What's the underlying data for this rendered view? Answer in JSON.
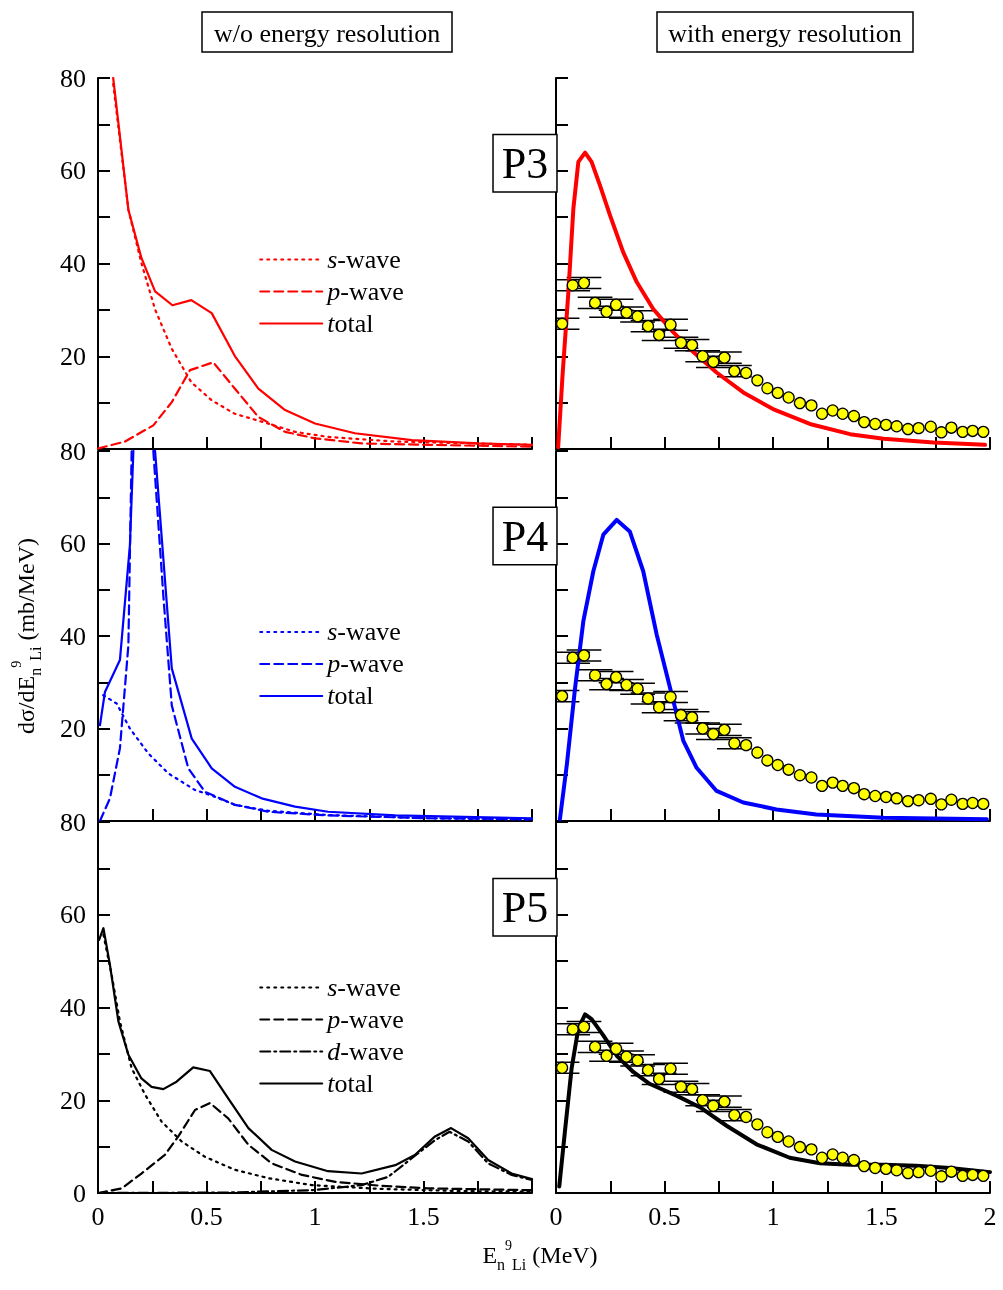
{
  "chart_data": [
    {
      "type": "line",
      "title": "w/o energy resolution",
      "xlim": [
        0,
        2
      ],
      "xticks": [
        0,
        {
          "value": 0.25,
          "label": null
        },
        0.5,
        {
          "value": 0.75,
          "label": null
        },
        1,
        {
          "value": 1.25,
          "label": null
        },
        1.5,
        {
          "value": 1.75,
          "label": null
        },
        2
      ],
      "ylim": [
        0,
        80
      ],
      "yticks": [
        {
          "value": 0,
          "label": null
        },
        {
          "value": 10,
          "label": null
        },
        20,
        {
          "value": 30,
          "label": null
        },
        40,
        {
          "value": 50,
          "label": null
        },
        60,
        {
          "value": 70,
          "label": null
        },
        80
      ],
      "tick_labels": "y",
      "legend": "right",
      "grid": false,
      "series": [
        {
          "name": "s-wave",
          "color": "#ff0000",
          "line_style": "dotted",
          "x": [
            0.07,
            0.14,
            0.2,
            0.263,
            0.34,
            0.43,
            0.524,
            0.63,
            0.754,
            0.908,
            1.06,
            1.37,
            2.0
          ],
          "values": [
            78.7,
            51.6,
            40.1,
            30.1,
            21.6,
            14.4,
            10.5,
            7.6,
            5.9,
            3.7,
            2.6,
            1.6,
            0.9
          ]
        },
        {
          "name": "p-wave",
          "color": "#ff0000",
          "line_style": "dashed",
          "x": [
            0,
            0.124,
            0.255,
            0.34,
            0.424,
            0.531,
            0.631,
            0.739,
            0.862,
            1.0,
            1.215,
            1.52,
            2.0
          ],
          "values": [
            0.1,
            1.6,
            5.1,
            10.1,
            17,
            18.7,
            13,
            6.9,
            3.7,
            2.3,
            1.2,
            0.9,
            0.5
          ]
        },
        {
          "name": "total",
          "color": "#ff0000",
          "line_style": "solid",
          "x": [
            0.07,
            0.14,
            0.2,
            0.263,
            0.343,
            0.43,
            0.524,
            0.63,
            0.739,
            0.862,
            1.0,
            1.184,
            1.446,
            1.753,
            2.0
          ],
          "values": [
            80,
            51.6,
            41.2,
            34,
            31,
            32.1,
            29.3,
            20.1,
            13,
            8.4,
            5.5,
            3.4,
            1.9,
            1.2,
            0.9
          ]
        }
      ]
    },
    {
      "type": "line",
      "title": "with energy resolution",
      "annotations": [
        "P3"
      ],
      "xlim": [
        0,
        2
      ],
      "xticks": [
        0,
        {
          "value": 0.25,
          "label": null
        },
        0.5,
        {
          "value": 0.75,
          "label": null
        },
        1,
        {
          "value": 1.25,
          "label": null
        },
        1.5,
        {
          "value": 1.75,
          "label": null
        },
        2
      ],
      "ylim": [
        0,
        80
      ],
      "yticks": [
        {
          "value": 0,
          "label": null
        },
        {
          "value": 10,
          "label": null
        },
        {
          "value": 20,
          "label": null
        },
        {
          "value": 30,
          "label": null
        },
        {
          "value": 40,
          "label": null
        },
        {
          "value": 50,
          "label": null
        },
        {
          "value": 60,
          "label": null
        },
        {
          "value": 70,
          "label": null
        },
        {
          "value": 80,
          "label": null
        }
      ],
      "tick_labels": false,
      "grid": false,
      "series": [
        {
          "type": "scatter",
          "color": "#ffff00",
          "marker": "circle",
          "x": [
            0.028,
            0.077,
            0.129,
            0.18,
            0.233,
            0.277,
            0.325,
            0.376,
            0.424,
            0.475,
            0.528,
            0.576,
            0.627,
            0.676,
            0.725,
            0.776,
            0.822,
            0.876,
            0.928,
            0.974,
            1.022,
            1.072,
            1.124,
            1.177,
            1.226,
            1.275,
            1.321,
            1.373,
            1.42,
            1.471,
            1.521,
            1.57,
            1.622,
            1.671,
            1.727,
            1.776,
            1.822,
            1.874,
            1.92,
            1.969
          ],
          "values": [
            27.0,
            35.3,
            35.8,
            31.5,
            29.6,
            31.1,
            29.4,
            28.6,
            26.5,
            24.6,
            26.8,
            22.9,
            22.4,
            20.0,
            18.8,
            19.7,
            16.8,
            16.4,
            14.8,
            13.1,
            12.1,
            11.1,
            9.9,
            9.4,
            7.6,
            8.3,
            7.6,
            7.1,
            5.8,
            5.4,
            5.2,
            4.9,
            4.3,
            4.5,
            4.8,
            3.6,
            4.6,
            3.7,
            3.9,
            3.7
          ],
          "errors": [
            1.2,
            1.2,
            1.2,
            1.2,
            1.2,
            1.2,
            1.2,
            1.2,
            1.2,
            1.2,
            1.2,
            1.2,
            1.2,
            1.2,
            1.2,
            1.2,
            1.2,
            null,
            null,
            null,
            null,
            null,
            null,
            null,
            null,
            null,
            null,
            null,
            null,
            null,
            null,
            null,
            null,
            null,
            null,
            null,
            null,
            null,
            null,
            null
          ]
        },
        {
          "type": "line",
          "color": "#ff0000",
          "line_style": "solid",
          "marker": "none",
          "x": [
            0.01,
            0.03,
            0.057,
            0.08,
            0.103,
            0.134,
            0.164,
            0.203,
            0.249,
            0.31,
            0.372,
            0.448,
            0.54,
            0.633,
            0.74,
            0.863,
            1.0,
            1.17,
            1.355,
            1.51,
            1.74,
            1.977
          ],
          "values": [
            0.4,
            15.8,
            33.8,
            51.8,
            61.9,
            63.9,
            61.9,
            56.8,
            50.4,
            42.4,
            36,
            30.2,
            25.2,
            20.9,
            16.5,
            12.2,
            8.6,
            5.4,
            3.2,
            2.2,
            1.4,
            0.9
          ]
        }
      ]
    },
    {
      "type": "line",
      "ylabel": "dσ/dE$_{n}$$^{9}$$_{Li}$ (mb/MeV)",
      "xlim": [
        0,
        2
      ],
      "xticks": [
        0,
        {
          "value": 0.25,
          "label": null
        },
        0.5,
        {
          "value": 0.75,
          "label": null
        },
        1,
        {
          "value": 1.25,
          "label": null
        },
        1.5,
        {
          "value": 1.75,
          "label": null
        },
        2
      ],
      "ylim": [
        0,
        80
      ],
      "yticks": [
        {
          "value": 0,
          "label": null
        },
        {
          "value": 10,
          "label": null
        },
        20,
        {
          "value": 30,
          "label": null
        },
        40,
        {
          "value": 50,
          "label": null
        },
        60,
        {
          "value": 70,
          "label": null
        },
        80
      ],
      "tick_labels": "y",
      "legend": "right",
      "grid": false,
      "series": [
        {
          "name": "s-wave",
          "color": "#0000ff",
          "line_style": "dotted",
          "x": [
            0.024,
            0.086,
            0.147,
            0.232,
            0.324,
            0.447,
            0.524,
            0.631,
            0.785,
            1.06,
            1.52,
            2.0
          ],
          "values": [
            27.2,
            25.4,
            20,
            14.6,
            10.3,
            6.7,
            5.5,
            3.5,
            2.2,
            1.3,
            0.6,
            0.3
          ]
        },
        {
          "name": "p-wave",
          "color": "#0000ff",
          "line_style": "dashed",
          "x": [
            0.009,
            0.055,
            0.101,
            0.14,
            0.155,
            0.205,
            0.255,
            0.301,
            0.34,
            0.416,
            0.493,
            0.631,
            0.785,
            1.06,
            1.52,
            2.0
          ],
          "values": [
            0,
            4.9,
            15.7,
            38,
            80,
            null,
            80,
            48.8,
            25,
            11.4,
            6.3,
            3.5,
            2.0,
            1.2,
            0.6,
            0.4
          ]
        },
        {
          "name": "total",
          "color": "#0000ff",
          "line_style": "solid",
          "x": [
            0.009,
            0.032,
            0.101,
            0.147,
            0.163,
            0.213,
            0.263,
            0.34,
            0.432,
            0.524,
            0.631,
            0.754,
            0.908,
            1.06,
            1.37,
            2.0
          ],
          "values": [
            20.7,
            27.9,
            34.8,
            59.6,
            80,
            null,
            80,
            33,
            17.8,
            11.4,
            7.4,
            4.9,
            3.1,
            2,
            1.2,
            0.6
          ]
        }
      ]
    },
    {
      "type": "line",
      "annotations": [
        "P4"
      ],
      "xlim": [
        0,
        2
      ],
      "xticks": [
        0,
        {
          "value": 0.25,
          "label": null
        },
        0.5,
        {
          "value": 0.75,
          "label": null
        },
        1,
        {
          "value": 1.25,
          "label": null
        },
        1.5,
        {
          "value": 1.75,
          "label": null
        },
        2
      ],
      "ylim": [
        0,
        80
      ],
      "yticks": [
        {
          "value": 0,
          "label": null
        },
        {
          "value": 10,
          "label": null
        },
        {
          "value": 20,
          "label": null
        },
        {
          "value": 30,
          "label": null
        },
        {
          "value": 40,
          "label": null
        },
        {
          "value": 50,
          "label": null
        },
        {
          "value": 60,
          "label": null
        },
        {
          "value": 70,
          "label": null
        },
        {
          "value": 80,
          "label": null
        }
      ],
      "tick_labels": false,
      "grid": false,
      "series": [
        {
          "type": "scatter",
          "color": "#ffff00",
          "marker": "circle",
          "x": [
            0.028,
            0.077,
            0.129,
            0.18,
            0.233,
            0.277,
            0.325,
            0.376,
            0.424,
            0.475,
            0.528,
            0.576,
            0.627,
            0.676,
            0.725,
            0.776,
            0.822,
            0.876,
            0.928,
            0.974,
            1.022,
            1.072,
            1.124,
            1.177,
            1.226,
            1.275,
            1.321,
            1.373,
            1.42,
            1.471,
            1.521,
            1.57,
            1.622,
            1.671,
            1.727,
            1.776,
            1.822,
            1.874,
            1.92,
            1.969
          ],
          "values": [
            27.0,
            35.3,
            35.8,
            31.5,
            29.6,
            31.1,
            29.4,
            28.6,
            26.5,
            24.6,
            26.8,
            22.9,
            22.4,
            20.0,
            18.8,
            19.7,
            16.8,
            16.4,
            14.8,
            13.1,
            12.1,
            11.1,
            9.9,
            9.4,
            7.6,
            8.3,
            7.6,
            7.1,
            5.8,
            5.4,
            5.2,
            4.9,
            4.3,
            4.5,
            4.8,
            3.6,
            4.6,
            3.7,
            3.9,
            3.7
          ],
          "errors": [
            1.2,
            1.2,
            1.2,
            1.2,
            1.2,
            1.2,
            1.2,
            1.2,
            1.2,
            1.2,
            1.2,
            1.2,
            1.2,
            1.2,
            1.2,
            1.2,
            1.2,
            null,
            null,
            null,
            null,
            null,
            null,
            null,
            null,
            null,
            null,
            null,
            null,
            null,
            null,
            null,
            null,
            null,
            null,
            null,
            null,
            null,
            null,
            null
          ]
        },
        {
          "type": "line",
          "color": "#0000ff",
          "line_style": "solid",
          "marker": "none",
          "x": [
            0.018,
            0.05,
            0.088,
            0.126,
            0.172,
            0.218,
            0.28,
            0.34,
            0.402,
            0.464,
            0.587,
            0.648,
            0.74,
            0.863,
            1.016,
            1.2,
            1.51,
            1.985
          ],
          "values": [
            0.4,
            12.2,
            28.8,
            43.2,
            54,
            61.9,
            65.1,
            62.6,
            54,
            40.3,
            17.3,
            11.5,
            6.5,
            4.0,
            2.5,
            1.4,
            0.7,
            0.4
          ]
        }
      ]
    },
    {
      "type": "line",
      "xlim": [
        0,
        2
      ],
      "xticks": [
        0,
        {
          "value": 0.25,
          "label": null
        },
        0.5,
        {
          "value": 0.75,
          "label": null
        },
        1,
        {
          "value": 1.25,
          "label": null
        },
        1.5,
        {
          "value": 1.75,
          "label": null
        },
        {
          "value": 2,
          "label": null
        }
      ],
      "ylim": [
        0,
        80
      ],
      "yticks": [
        0,
        {
          "value": 10,
          "label": null
        },
        20,
        {
          "value": 30,
          "label": null
        },
        40,
        {
          "value": 50,
          "label": null
        },
        60,
        {
          "value": 70,
          "label": null
        },
        80
      ],
      "legend": "right",
      "grid": false,
      "series": [
        {
          "name": "s-wave",
          "color": "#000000",
          "line_style": "dotted",
          "x": [
            0.025,
            0.063,
            0.101,
            0.155,
            0.217,
            0.293,
            0.386,
            0.493,
            0.631,
            0.785,
            0.985,
            1.292,
            1.676,
            2.0
          ],
          "values": [
            55.7,
            47,
            37,
            26.9,
            21.2,
            15.4,
            11.1,
            7.8,
            5,
            3.2,
            1.7,
            0.9,
            0.4,
            0.3
          ]
        },
        {
          "name": "p-wave",
          "color": "#000000",
          "line_style": "dashed",
          "x": [
            0,
            0.109,
            0.2,
            0.308,
            0.37,
            0.447,
            0.516,
            0.6,
            0.693,
            0.8,
            0.94,
            1.094,
            1.292,
            1.52,
            2.0
          ],
          "values": [
            0,
            1,
            4.2,
            8.2,
            12.2,
            17.9,
            19.4,
            16.1,
            10.4,
            6.4,
            3.9,
            2.4,
            1.6,
            1.0,
            0.6
          ]
        },
        {
          "name": "d-wave",
          "color": "#000000",
          "line_style": "dashdot",
          "x": [
            0,
            0.6,
            0.985,
            1.215,
            1.338,
            1.446,
            1.553,
            1.62,
            1.706,
            1.798,
            1.906,
            2.0
          ],
          "values": [
            0,
            0.1,
            0.6,
            1.7,
            3.5,
            7.5,
            11.4,
            13.2,
            11.1,
            6.4,
            3.9,
            2.8
          ]
        },
        {
          "name": "total",
          "color": "#000000",
          "line_style": "solid",
          "x": [
            0.005,
            0.025,
            0.055,
            0.094,
            0.14,
            0.2,
            0.247,
            0.301,
            0.362,
            0.439,
            0.516,
            0.6,
            0.693,
            0.8,
            0.908,
            1.06,
            1.215,
            1.37,
            1.46,
            1.553,
            1.627,
            1.706,
            1.798,
            1.906,
            2.0
          ],
          "values": [
            54.6,
            57.1,
            49.2,
            37,
            29.8,
            24.7,
            22.9,
            22.4,
            24,
            27.1,
            26.3,
            20.4,
            14,
            9.3,
            6.8,
            4.7,
            4.2,
            6,
            8.2,
            12.2,
            14,
            11.8,
            7.1,
            4.2,
            3.0
          ]
        }
      ]
    },
    {
      "type": "line",
      "annotations": [
        "P5"
      ],
      "xlabel": "E$_{n}$$^{9}$$_{Li}$ (MeV)",
      "xlim": [
        0,
        2
      ],
      "xticks": [
        0,
        {
          "value": 0.25,
          "label": null
        },
        0.5,
        {
          "value": 0.75,
          "label": null
        },
        1,
        {
          "value": 1.25,
          "label": null
        },
        1.5,
        {
          "value": 1.75,
          "label": null
        },
        2
      ],
      "ylim": [
        0,
        80
      ],
      "yticks": [
        {
          "value": 0,
          "label": null
        },
        {
          "value": 10,
          "label": null
        },
        {
          "value": 20,
          "label": null
        },
        {
          "value": 30,
          "label": null
        },
        {
          "value": 40,
          "label": null
        },
        {
          "value": 50,
          "label": null
        },
        {
          "value": 60,
          "label": null
        },
        {
          "value": 70,
          "label": null
        },
        {
          "value": 80,
          "label": null
        }
      ],
      "tick_labels": "x",
      "grid": false,
      "series": [
        {
          "type": "scatter",
          "color": "#ffff00",
          "marker": "circle",
          "x": [
            0.028,
            0.077,
            0.129,
            0.18,
            0.233,
            0.277,
            0.325,
            0.376,
            0.424,
            0.475,
            0.528,
            0.576,
            0.627,
            0.676,
            0.725,
            0.776,
            0.822,
            0.876,
            0.928,
            0.974,
            1.022,
            1.072,
            1.124,
            1.177,
            1.226,
            1.275,
            1.321,
            1.373,
            1.42,
            1.471,
            1.521,
            1.57,
            1.622,
            1.671,
            1.727,
            1.776,
            1.822,
            1.874,
            1.92,
            1.969
          ],
          "values": [
            27.0,
            35.3,
            35.8,
            31.5,
            29.6,
            31.1,
            29.4,
            28.6,
            26.5,
            24.6,
            26.8,
            22.9,
            22.4,
            20.0,
            18.8,
            19.7,
            16.8,
            16.4,
            14.8,
            13.1,
            12.1,
            11.1,
            9.9,
            9.4,
            7.6,
            8.3,
            7.6,
            7.1,
            5.8,
            5.4,
            5.2,
            4.9,
            4.3,
            4.5,
            4.8,
            3.6,
            4.6,
            3.7,
            3.9,
            3.7
          ],
          "errors": [
            1.2,
            1.2,
            1.2,
            1.2,
            1.2,
            1.2,
            1.2,
            1.2,
            1.2,
            1.2,
            1.2,
            1.2,
            1.2,
            1.2,
            1.2,
            1.2,
            1.2,
            null,
            null,
            null,
            null,
            null,
            null,
            null,
            null,
            null,
            null,
            null,
            null,
            null,
            null,
            null,
            null,
            null,
            null,
            null,
            null,
            null,
            null,
            null
          ]
        },
        {
          "type": "line",
          "color": "#000000",
          "line_style": "solid",
          "marker": "none",
          "x": [
            0.015,
            0.041,
            0.072,
            0.103,
            0.134,
            0.164,
            0.218,
            0.28,
            0.356,
            0.433,
            0.555,
            0.663,
            0.786,
            0.924,
            1.077,
            1.216,
            1.355,
            1.51,
            1.66,
            1.815,
            2.0
          ],
          "values": [
            1.4,
            13.2,
            26.9,
            35.5,
            38.5,
            37.5,
            34,
            29.6,
            26.1,
            23.5,
            21,
            18.5,
            14.5,
            10.5,
            7.6,
            6.4,
            6.1,
            6.1,
            5.9,
            5.4,
            4.5
          ]
        }
      ]
    }
  ]
}
